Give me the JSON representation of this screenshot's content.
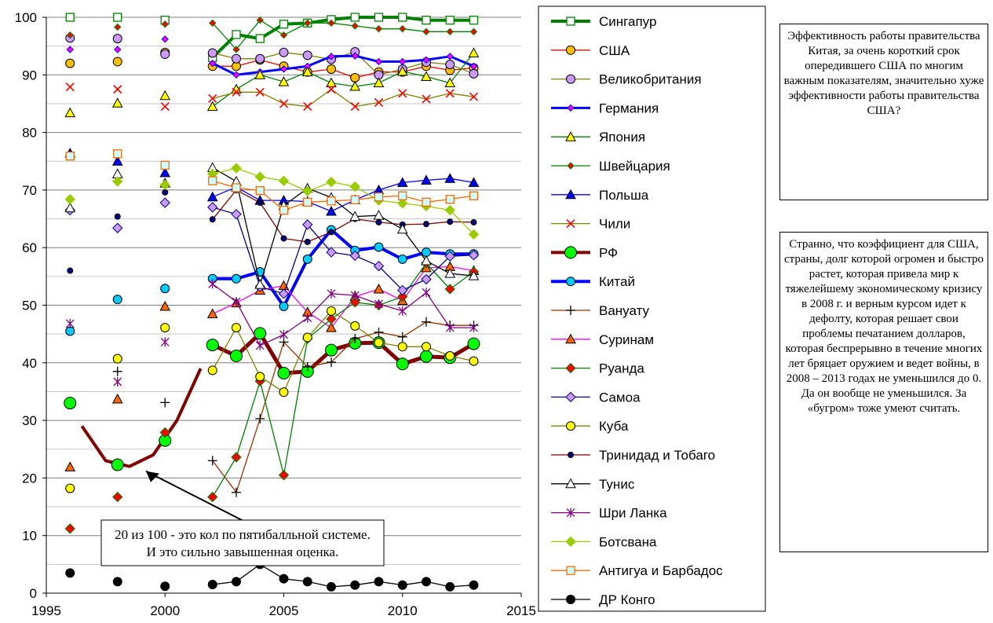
{
  "notes": [
    "Эффективность работы правительства Китая, за очень короткий срок опередившего США по многим важным показателям, значительно хуже эффективности работы правительства США?",
    "Странно, что коэффициент для США,   страны, долг которой огромен и быстро растет, которая привела мир к тяжелейшему экономическому кризису в 2008 г. и верным курсом идет к дефолту,  которая решает свои проблемы печатанием долларов, которая беспрерывно в течение многих лет бряцает оружием и ведет войны,  в 2008 – 2013 годах  не уменьшился до 0. Да он вообще не уменьшился. За «бугром» тоже умеют считать."
  ],
  "chart_data": {
    "type": "line",
    "xlim": [
      1995,
      2015
    ],
    "ylim": [
      0,
      100
    ],
    "x_ticks": [
      1995,
      2000,
      2005,
      2010,
      2015
    ],
    "y_ticks": [
      0,
      10,
      20,
      30,
      40,
      50,
      60,
      70,
      80,
      90,
      100
    ],
    "grid": "horizontal",
    "legend_position": "right",
    "annotation": {
      "lines": [
        "20 из 100 - это кол по пятибалльной системе.",
        "И это сильно завышенная оценка."
      ],
      "arrow_to": [
        1999,
        22
      ]
    },
    "trend_curve": {
      "x": [
        1996.5,
        1997.5,
        1998.5,
        1999.5,
        2000.5,
        2001.5
      ],
      "y": [
        29,
        23,
        22,
        24,
        30,
        39
      ]
    },
    "x": [
      1996,
      1998,
      2000,
      2002,
      2003,
      2004,
      2005,
      2006,
      2007,
      2008,
      2009,
      2010,
      2011,
      2012,
      2013
    ],
    "series": [
      {
        "name": "Сингапур",
        "color": "#008000",
        "marker": "square",
        "marker_fill": "#ffffff",
        "width": 4,
        "values": [
          100,
          100,
          99.5,
          93,
          97,
          96.3,
          98.8,
          99,
          99.6,
          100,
          100,
          100,
          99.5,
          99.5,
          99.5
        ]
      },
      {
        "name": "США",
        "color": "#ff0000",
        "marker": "circle",
        "marker_fill": "#ffc000",
        "width": 1.3,
        "values": [
          92,
          92.3,
          93.9,
          91.5,
          91.5,
          92.6,
          91.5,
          90.5,
          91,
          89.5,
          90.5,
          90.5,
          91.5,
          90.8,
          91.2
        ]
      },
      {
        "name": "Великобритания",
        "color": "#808000",
        "marker": "circle",
        "marker_fill": "#cc99ff",
        "width": 1.3,
        "values": [
          96.4,
          96.3,
          93.6,
          93.8,
          92.8,
          92.8,
          93.9,
          93.4,
          92.7,
          94,
          90,
          91,
          92.2,
          91.8,
          90.2
        ]
      },
      {
        "name": "Германия",
        "color": "#0000ff",
        "marker": "diamond",
        "marker_fill": "#ff00ff",
        "marker_size": 3,
        "width": 3,
        "values": [
          94.4,
          94.4,
          96.2,
          92,
          90,
          90.5,
          91,
          91.5,
          93.2,
          93.3,
          92.3,
          92.3,
          92.6,
          93.2,
          91.5
        ]
      },
      {
        "name": "Япония",
        "color": "#008000",
        "marker": "triangle",
        "marker_fill": "#ffff00",
        "width": 1.3,
        "values": [
          83.4,
          85.1,
          86.4,
          84.5,
          87.5,
          90,
          88.8,
          90.5,
          88.6,
          88,
          88.6,
          90.6,
          89.7,
          88.6,
          93.8
        ]
      },
      {
        "name": "Швейцария",
        "color": "#008000",
        "marker": "diamond",
        "marker_fill": "#ff0000",
        "marker_size": 3,
        "width": 1.3,
        "values": [
          96.9,
          98.3,
          98.8,
          99,
          94.4,
          99.5,
          96.9,
          99,
          99,
          98.5,
          98,
          98,
          97.5,
          97.5,
          97.5
        ]
      },
      {
        "name": "Польша",
        "color": "#0000ff",
        "marker": "triangle",
        "marker_fill": "#0000ff",
        "width": 1.3,
        "values": [
          76.4,
          75,
          73,
          68.8,
          70.5,
          68.2,
          68.2,
          68,
          66.3,
          68.3,
          70,
          71.3,
          71.7,
          72,
          71.3
        ]
      },
      {
        "name": "Чили",
        "color": "#808000",
        "marker": "x",
        "marker_fill": "#ff0000",
        "width": 1.3,
        "values": [
          87.9,
          87.5,
          84.5,
          85.9,
          87,
          87,
          85,
          84.5,
          87.5,
          84.5,
          85.2,
          86.8,
          85.8,
          86.8,
          86.2
        ]
      },
      {
        "name": "РФ",
        "color": "#800000",
        "marker": "circle",
        "marker_fill": "#00ff00",
        "marker_size": 7,
        "width": 5,
        "values": [
          33,
          22.3,
          26.5,
          43.1,
          41.2,
          45.1,
          38.2,
          38.5,
          42.2,
          43.4,
          43.5,
          39.8,
          41.1,
          40.9,
          43.3
        ]
      },
      {
        "name": "Китай",
        "color": "#0000ff",
        "marker": "circle",
        "marker_fill": "#00ccff",
        "width": 4,
        "values": [
          45.5,
          51,
          52.9,
          54.6,
          54.6,
          55.8,
          49.8,
          58,
          63.1,
          59.5,
          60.1,
          58,
          59.2,
          58.9,
          58.9
        ]
      },
      {
        "name": "Вануату",
        "color": "#993300",
        "marker": "plus",
        "marker_fill": "#000000",
        "width": 1.3,
        "values": [
          null,
          38.5,
          33.1,
          23,
          17.5,
          30.3,
          43.6,
          39.3,
          40.1,
          44.2,
          45.3,
          44.5,
          47.1,
          46.5,
          46.5
        ]
      },
      {
        "name": "Суринам",
        "color": "#ff00ff",
        "marker": "triangle",
        "marker_fill": "#ff6600",
        "width": 1.3,
        "values": [
          21.9,
          33.7,
          49.8,
          48.5,
          50.4,
          52.6,
          53.4,
          48.8,
          46.1,
          51.5,
          52.8,
          50.8,
          56.5,
          56.7,
          56
        ]
      },
      {
        "name": "Руанда",
        "color": "#008000",
        "marker": "diamond",
        "marker_fill": "#ff0000",
        "width": 1.3,
        "values": [
          11.2,
          16.7,
          27.9,
          16.7,
          23.6,
          36.8,
          20.5,
          44.2,
          47.6,
          50.5,
          50,
          51.5,
          57.3,
          52.8,
          55.8
        ]
      },
      {
        "name": "Самоа",
        "color": "#000080",
        "marker": "diamond",
        "marker_fill": "#cc99ff",
        "width": 1.3,
        "values": [
          66.5,
          63.4,
          67.8,
          67,
          65.8,
          53.2,
          52,
          64,
          59.2,
          58.6,
          56.8,
          52.6,
          54.5,
          58.5,
          58.7
        ]
      },
      {
        "name": "Куба",
        "color": "#808000",
        "marker": "circle",
        "marker_fill": "#ffff00",
        "width": 1.3,
        "values": [
          18.2,
          40.7,
          46.1,
          38.7,
          46.1,
          37.6,
          34.9,
          44.4,
          49,
          46.4,
          43.5,
          42.8,
          42.8,
          41.2,
          40.3
        ]
      },
      {
        "name": "Тринидад и Тобаго",
        "color": "#800000",
        "marker": "circle",
        "marker_fill": "#000080",
        "marker_size": 3,
        "width": 1.3,
        "values": [
          56,
          65.4,
          69.6,
          64.9,
          70,
          67.8,
          61.6,
          61,
          62.7,
          65,
          64.4,
          64,
          64.1,
          64.5,
          64.4
        ]
      },
      {
        "name": "Тунис",
        "color": "#000000",
        "marker": "triangle",
        "marker_fill": "#ffffff",
        "width": 1.3,
        "values": [
          66.9,
          72.8,
          71.2,
          73.9,
          71.5,
          53.6,
          67.3,
          70.3,
          68.7,
          65.4,
          65.6,
          63.2,
          57.7,
          55.5,
          55.1
        ]
      },
      {
        "name": "Шри Ланка",
        "color": "#800080",
        "marker": "star",
        "marker_fill": "#800080",
        "width": 1.3,
        "values": [
          46.8,
          36.7,
          43.6,
          53.7,
          50.6,
          43,
          44.9,
          47.8,
          52,
          51.7,
          50.2,
          49,
          52.2,
          46.1,
          46.1
        ]
      },
      {
        "name": "Ботсвана",
        "color": "#99cc00",
        "marker": "diamond",
        "marker_fill": "#99cc00",
        "width": 1.3,
        "values": [
          68.4,
          71.5,
          70.9,
          72.8,
          73.8,
          72.3,
          71.6,
          69.8,
          71.4,
          70.6,
          68.2,
          67.7,
          67.2,
          66.5,
          62.3
        ]
      },
      {
        "name": "Антигуа и Барбадос",
        "color": "#ff6600",
        "marker": "square",
        "marker_fill": "#ccffff",
        "width": 1.3,
        "values": [
          75.9,
          76.3,
          74.3,
          71.6,
          70.4,
          69.9,
          66.5,
          67.9,
          68.1,
          68.3,
          68.8,
          69,
          67.9,
          68.4,
          69
        ]
      },
      {
        "name": "ДР Конго",
        "color": "#000000",
        "marker": "circle",
        "marker_fill": "#000000",
        "width": 1.3,
        "values": [
          3.5,
          2,
          1.2,
          1.5,
          2,
          5,
          2.5,
          2,
          1.1,
          1.4,
          2,
          1.4,
          2,
          1.1,
          1.4
        ]
      }
    ]
  }
}
